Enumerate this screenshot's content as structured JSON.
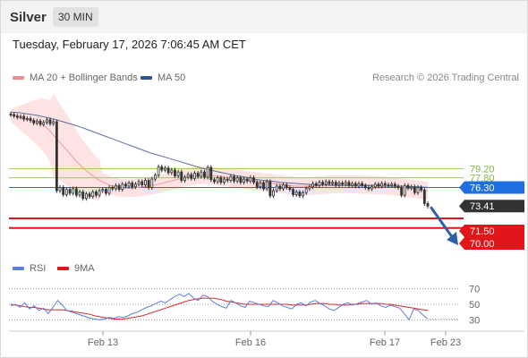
{
  "header": {
    "symbol": "Silver",
    "timeframe": "30 MIN"
  },
  "datetime": "Tuesday, February 17, 2026 7:06:45 AM CET",
  "legend_main": [
    {
      "label": "MA 20 + Bollinger Bands",
      "color": "#f28b8b"
    },
    {
      "label": "MA 50",
      "color": "#2f5597"
    }
  ],
  "legend_rsi": [
    {
      "label": "RSI",
      "color": "#5b7fd6"
    },
    {
      "label": "9MA",
      "color": "#e0161b"
    }
  ],
  "copyright": "Research © 2026 Trading Central",
  "colors": {
    "green_level": "#9acd63",
    "pivot": "#1f6fe0",
    "support": "#e0161b",
    "price_tag": "#333333",
    "candle": "#333333",
    "bollinger": "#fde3e3",
    "ma20": "#f19a9a",
    "ma50": "#5d6f9e",
    "arrow": "#2f5fa5"
  },
  "chart_data": {
    "type": "candlestick",
    "ylim": [
      66.5,
      91.5
    ],
    "levels": [
      {
        "value": 79.2,
        "label": "79.20",
        "kind": "resistance-green"
      },
      {
        "value": 77.8,
        "label": "77.80",
        "kind": "resistance-green"
      },
      {
        "value": 76.3,
        "label": "76.30",
        "kind": "pivot"
      },
      {
        "value": 73.41,
        "label": "73.41",
        "kind": "last-price"
      },
      {
        "value": 71.5,
        "label": "71.50",
        "kind": "support"
      },
      {
        "value": 70.0,
        "label": "70.00",
        "kind": "support"
      }
    ],
    "x_labels": [
      "Feb 13",
      "Feb 16",
      "Feb 17",
      "Feb 23"
    ],
    "close": [
      87.6,
      87.4,
      87.2,
      87.3,
      86.9,
      87.0,
      86.7,
      86.3,
      86.6,
      86.1,
      86.4,
      86.8,
      86.2,
      86.5,
      75.8,
      76.3,
      75.2,
      76.0,
      75.4,
      76.1,
      75.1,
      75.6,
      74.6,
      75.3,
      74.9,
      75.6,
      75.1,
      75.8,
      76.0,
      75.4,
      76.3,
      76.1,
      76.6,
      76.0,
      76.8,
      76.5,
      77.0,
      76.4,
      76.8,
      77.2,
      76.7,
      77.4,
      76.3,
      77.6,
      78.2,
      79.5,
      79.0,
      79.3,
      78.6,
      79.0,
      78.1,
      78.7,
      77.4,
      77.9,
      78.3,
      77.7,
      78.5,
      78.0,
      78.7,
      77.9,
      79.4,
      77.5,
      77.2,
      77.8,
      77.1,
      77.6,
      77.4,
      78.0,
      77.3,
      77.8,
      77.1,
      77.6,
      77.3,
      77.8,
      77.1,
      76.4,
      77.0,
      76.1,
      77.2,
      75.0,
      75.8,
      76.5,
      76.1,
      76.7,
      76.3,
      76.0,
      75.2,
      75.6,
      75.0,
      75.5,
      76.1,
      76.4,
      76.9,
      76.6,
      77.1,
      76.8,
      77.2,
      76.9,
      77.1,
      76.7,
      77.0,
      76.8,
      77.1,
      76.6,
      76.9,
      76.5,
      76.9,
      76.6,
      76.3,
      76.1,
      76.4,
      76.8,
      76.5,
      76.9,
      76.7,
      76.6,
      76.8,
      76.5,
      76.3,
      75.1,
      76.6,
      76.2,
      76.4,
      75.5,
      76.3,
      75.9,
      73.8,
      73.4
    ],
    "ma20": [
      87.5,
      87.3,
      87.1,
      86.9,
      86.7,
      86.5,
      86.2,
      85.6,
      84.8,
      83.9,
      83.0,
      82.1,
      81.2,
      80.3,
      79.5,
      78.8,
      78.2,
      77.6,
      77.2,
      76.8,
      76.5,
      76.3,
      76.2,
      76.2,
      76.2,
      76.3,
      76.4,
      76.5,
      76.6,
      76.8,
      77.0,
      77.2,
      77.4,
      77.6,
      77.8,
      78.0,
      78.1,
      78.2,
      78.2,
      78.2,
      78.1,
      78.0,
      77.9,
      77.8,
      77.7,
      77.6,
      77.5,
      77.4,
      77.3,
      77.2,
      77.1,
      77.0,
      76.9,
      76.8,
      76.7,
      76.6,
      76.5,
      76.5,
      76.5,
      76.5,
      76.6,
      76.6,
      76.7,
      76.8,
      76.8,
      76.8,
      76.8,
      76.8,
      76.8,
      76.7,
      76.7,
      76.7,
      76.6,
      76.6,
      76.5,
      76.5,
      76.4,
      76.3,
      76.2,
      76.1,
      76.0,
      75.9,
      75.8
    ],
    "ma50": [
      88.0,
      87.9,
      87.7,
      87.5,
      87.2,
      86.9,
      86.5,
      86.1,
      85.7,
      85.2,
      84.7,
      84.2,
      83.7,
      83.2,
      82.7,
      82.2,
      81.7,
      81.3,
      80.9,
      80.5,
      80.1,
      79.7,
      79.3,
      79.0,
      78.7,
      78.4,
      78.1,
      77.9,
      77.6,
      77.4,
      77.3,
      77.1,
      77.0,
      76.9,
      76.8,
      76.7,
      76.7,
      76.6,
      76.6,
      76.6,
      76.6,
      76.6,
      76.6,
      76.5,
      76.5,
      76.5,
      76.4,
      76.4,
      76.3
    ],
    "rsi": [
      48,
      50,
      46,
      52,
      44,
      48,
      42,
      45,
      38,
      46,
      55,
      49,
      42,
      40,
      38,
      36,
      34,
      32,
      31,
      30,
      31,
      33,
      32,
      34,
      33,
      35,
      38,
      40,
      43,
      46,
      48,
      51,
      54,
      52,
      56,
      60,
      63,
      60,
      64,
      58,
      55,
      62,
      60,
      54,
      50,
      47,
      45,
      55,
      52,
      48,
      46,
      54,
      52,
      50,
      48,
      47,
      55,
      52,
      48,
      46,
      44,
      50,
      52,
      48,
      53,
      55,
      51,
      48,
      44,
      42,
      46,
      50,
      52,
      49,
      51,
      53,
      55,
      50,
      52,
      48,
      46,
      49,
      47,
      45,
      38,
      30,
      44,
      42,
      36,
      31
    ],
    "rsi_ma": [
      50,
      49,
      48,
      47,
      46,
      46,
      45,
      44,
      43,
      43,
      43,
      43,
      42,
      41,
      40,
      39,
      38,
      37,
      35,
      34,
      33,
      32,
      31,
      31,
      31,
      32,
      33,
      34,
      35,
      37,
      39,
      41,
      43,
      45,
      47,
      49,
      51,
      53,
      55,
      56,
      57,
      58,
      58,
      58,
      57,
      56,
      54,
      53,
      52,
      51,
      50,
      50,
      50,
      50,
      50,
      50,
      50,
      50,
      50,
      50,
      49,
      49,
      49,
      49,
      50,
      51,
      51,
      51,
      50,
      50,
      49,
      49,
      49,
      50,
      50,
      51,
      51,
      51,
      51,
      51,
      50,
      50,
      49,
      48,
      47,
      46,
      45,
      44,
      43,
      42
    ],
    "rsi_levels": [
      70,
      50,
      30
    ]
  }
}
